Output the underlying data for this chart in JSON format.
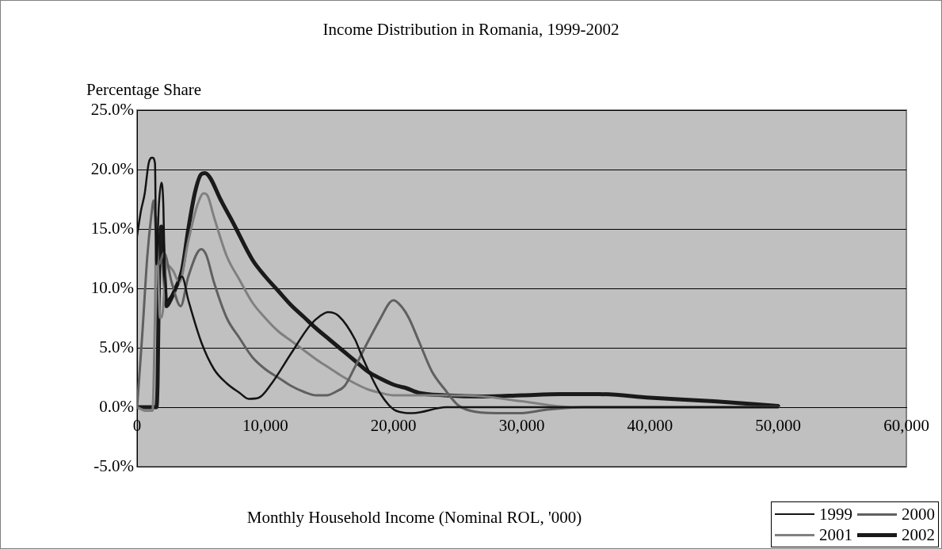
{
  "chart_data": {
    "type": "line",
    "title": "Income Distribution in Romania, 1999-2002",
    "ylabel": "Percentage Share",
    "xlabel": "Monthly Household Income (Nominal ROL, '000)",
    "xlim": [
      0,
      60000
    ],
    "xticks": [
      {
        "value": 0,
        "label": "0"
      },
      {
        "value": 10000,
        "label": "10,000"
      },
      {
        "value": 20000,
        "label": "20,000"
      },
      {
        "value": 30000,
        "label": "30,000"
      },
      {
        "value": 40000,
        "label": "40,000"
      },
      {
        "value": 50000,
        "label": "50,000"
      },
      {
        "value": 60000,
        "label": "60,000"
      }
    ],
    "ylim": [
      -5,
      25
    ],
    "yticks": [
      {
        "value": -5,
        "label": "-5.0%"
      },
      {
        "value": 0,
        "label": "0.0%"
      },
      {
        "value": 5,
        "label": "5.0%"
      },
      {
        "value": 10,
        "label": "10.0%"
      },
      {
        "value": 15,
        "label": "15.0%"
      },
      {
        "value": 20,
        "label": "20.0%"
      },
      {
        "value": 25,
        "label": "25.0%"
      }
    ],
    "grid": "y",
    "legend": "bottom right",
    "marker": "none",
    "line_style": "solid",
    "series": [
      {
        "name": "1999",
        "color": "#141414",
        "x": [
          0,
          300,
          600,
          900,
          1200,
          1400,
          1500,
          1700,
          1900,
          2050,
          2150,
          2300,
          3000,
          3500,
          4000,
          5000,
          6000,
          7000,
          8000,
          8700,
          9500,
          10500,
          12000,
          13500,
          14300,
          14900,
          15700,
          17000,
          17500,
          19000,
          20200,
          21500,
          24100,
          50000
        ],
        "values": [
          14.4,
          16.5,
          18,
          20.5,
          21,
          20.5,
          12,
          17,
          18.9,
          17,
          12,
          9,
          10,
          11,
          9,
          5.5,
          3.2,
          2,
          1.2,
          0.7,
          0.8,
          2,
          4.5,
          6.9,
          7.7,
          8,
          7.7,
          5.7,
          4.4,
          1.1,
          -0.3,
          -0.5,
          0,
          0
        ]
      },
      {
        "name": "2000",
        "color": "#606060",
        "x": [
          0,
          400,
          800,
          1100,
          1300,
          1500,
          1700,
          2100,
          2700,
          3400,
          4000,
          5000,
          5400,
          6000,
          7000,
          8000,
          9000,
          10000,
          11000,
          12000,
          13000,
          14000,
          14800,
          15500,
          16200,
          17000,
          18000,
          19000,
          19700,
          20000,
          20600,
          21200,
          22000,
          23000,
          24000,
          25000,
          26000,
          28000,
          30000,
          32000,
          35000,
          50000
        ],
        "values": [
          0,
          6,
          12.7,
          16,
          17.4,
          14,
          12,
          13,
          10.5,
          8.5,
          11,
          13.3,
          12.8,
          10.5,
          7.5,
          5.8,
          4.2,
          3.2,
          2.5,
          1.8,
          1.3,
          1,
          1,
          1.3,
          1.8,
          3.4,
          5.5,
          7.5,
          8.8,
          9,
          8.5,
          7.5,
          5.5,
          3,
          1.5,
          0.2,
          -0.3,
          -0.5,
          -0.5,
          -0.2,
          0,
          0
        ]
      },
      {
        "name": "2001",
        "color": "#808080",
        "x": [
          0,
          700,
          1200,
          1400,
          1500,
          1600,
          1800,
          2000,
          2300,
          2800,
          3300,
          4000,
          4700,
          5200,
          5500,
          6000,
          7000,
          8000,
          9000,
          10000,
          11000,
          12000,
          13000,
          14000,
          15000,
          16000,
          17000,
          18000,
          19000,
          20000,
          22000,
          24000,
          27000,
          30000,
          34000,
          50000
        ],
        "values": [
          0,
          -0.3,
          -0.3,
          8,
          16,
          13,
          7.5,
          8,
          12,
          11.5,
          10.5,
          14,
          17,
          18,
          17.8,
          16,
          12.7,
          10.7,
          8.8,
          7.5,
          6.4,
          5.6,
          4.8,
          4,
          3.3,
          2.6,
          2,
          1.5,
          1.2,
          1,
          1,
          1,
          0.9,
          0.5,
          0,
          0
        ]
      },
      {
        "name": "2002",
        "color": "#1a1a1a",
        "x": [
          0,
          1500,
          1600,
          1700,
          1900,
          2100,
          2300,
          2600,
          3000,
          3500,
          4000,
          4500,
          5000,
          5300,
          5700,
          6500,
          7500,
          9000,
          10000,
          11000,
          12000,
          13000,
          14000,
          15000,
          16000,
          17000,
          18000,
          19000,
          20000,
          21000,
          22000,
          24000,
          27000,
          30000,
          33000,
          36000,
          40000,
          45000,
          50000
        ],
        "values": [
          0,
          0,
          2,
          10,
          15.2,
          12,
          8.5,
          9,
          10,
          11.5,
          15,
          18,
          19.6,
          19.7,
          19.3,
          17.5,
          15.5,
          12.4,
          11,
          9.8,
          8.6,
          7.6,
          6.6,
          5.7,
          4.8,
          3.9,
          3,
          2.4,
          1.9,
          1.6,
          1.2,
          1,
          0.9,
          1,
          1.1,
          1.1,
          0.8,
          0.5,
          0.1
        ]
      }
    ]
  }
}
